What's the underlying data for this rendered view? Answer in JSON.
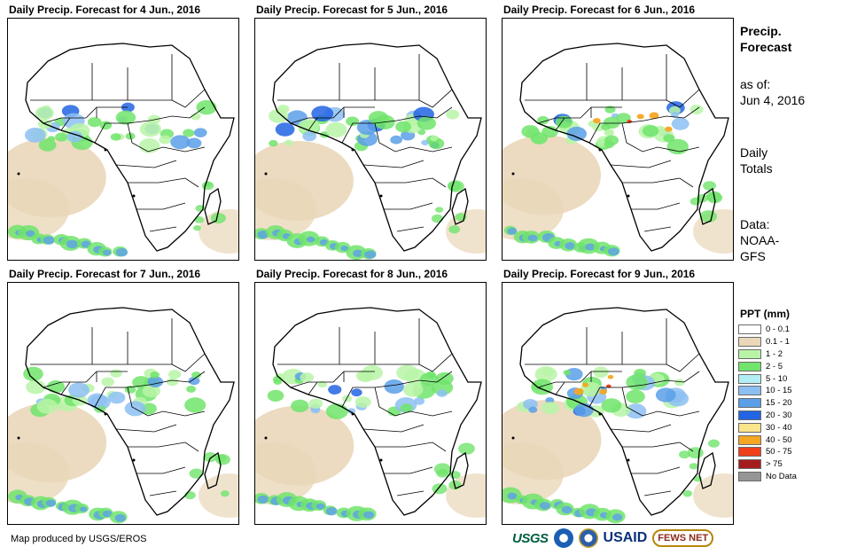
{
  "panels": [
    {
      "title": "Daily Precip. Forecast for 4 Jun., 2016"
    },
    {
      "title": "Daily Precip. Forecast for 5 Jun., 2016"
    },
    {
      "title": "Daily Precip. Forecast for 6 Jun., 2016"
    },
    {
      "title": "Daily Precip. Forecast for 7 Jun., 2016"
    },
    {
      "title": "Daily Precip. Forecast for 8 Jun., 2016"
    },
    {
      "title": "Daily Precip. Forecast for 9 Jun., 2016"
    }
  ],
  "sidebar": {
    "title_line1": "Precip.",
    "title_line2": "Forecast",
    "asof_label": "as of:",
    "asof_date": "Jun 4, 2016",
    "totals_line1": "Daily",
    "totals_line2": "Totals",
    "source_line1": "Data:",
    "source_line2": "NOAA-",
    "source_line3": "GFS"
  },
  "legend": {
    "title": "PPT (mm)",
    "items": [
      {
        "label": "0 - 0.1",
        "color": "#ffffff"
      },
      {
        "label": "0.1 - 1",
        "color": "#ead7b9"
      },
      {
        "label": "1 - 2",
        "color": "#b8f4a7"
      },
      {
        "label": "2 - 5",
        "color": "#70e46b"
      },
      {
        "label": "5 - 10",
        "color": "#b3eef5"
      },
      {
        "label": "10 - 15",
        "color": "#8dbff2"
      },
      {
        "label": "15 - 20",
        "color": "#5b9fe8"
      },
      {
        "label": "20 - 30",
        "color": "#2264e3"
      },
      {
        "label": "30 - 40",
        "color": "#fbe48a"
      },
      {
        "label": "40 - 50",
        "color": "#f5a623"
      },
      {
        "label": "50 - 75",
        "color": "#f0401a"
      },
      {
        "label": "> 75",
        "color": "#a51c1c"
      },
      {
        "label": "No Data",
        "color": "#959595"
      }
    ]
  },
  "footer": {
    "credit": "Map produced by USGS/EROS",
    "logo_usgs": "USGS",
    "logo_usaid": "USAID",
    "logo_fews": "FEWS NET"
  }
}
